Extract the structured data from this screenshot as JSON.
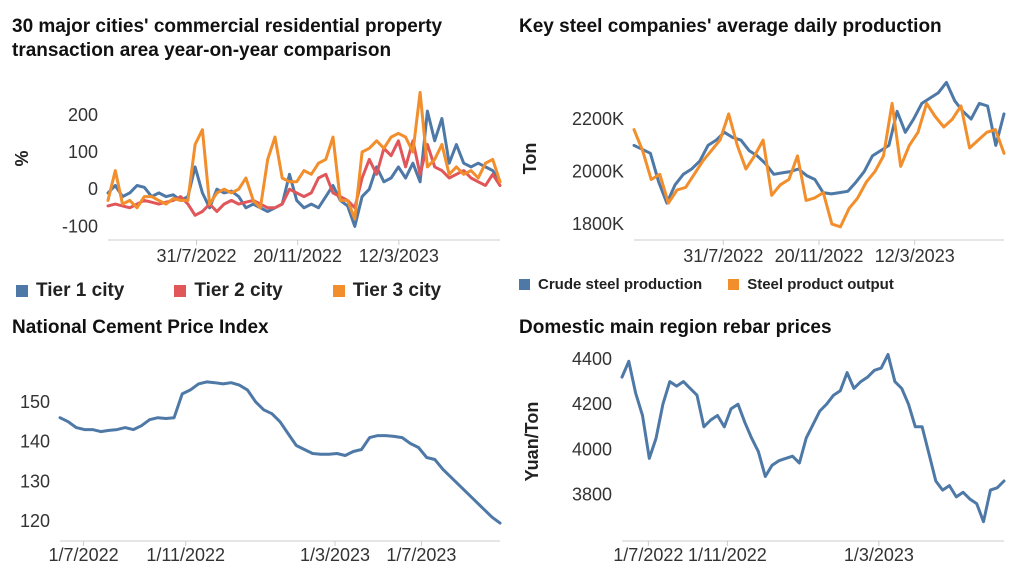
{
  "colors": {
    "blue": "#4e79a7",
    "red": "#e15759",
    "orange": "#f28e2b",
    "axis": "#cccccc"
  },
  "chart_data": [
    {
      "id": "c1",
      "type": "line",
      "title_lines": [
        "30 major cities' commercial residential property",
        "transaction area year-on-year comparison"
      ],
      "ylabel": "%",
      "xlabel": "",
      "xlim": [
        0,
        62
      ],
      "ylim": [
        -115,
        280
      ],
      "yticks": [
        -100,
        0,
        100,
        200
      ],
      "ytick_labels": [
        "-100",
        "0",
        "100",
        "200"
      ],
      "xticks": [
        14,
        30,
        46
      ],
      "xtick_labels": [
        "31/7/2022",
        "20/11/2022",
        "12/3/2023"
      ],
      "legend_position": "bottom",
      "series": [
        {
          "name": "Tier 1 city",
          "color": "#4e79a7",
          "values": [
            -10,
            10,
            -20,
            -10,
            10,
            5,
            -20,
            -10,
            -20,
            -15,
            -30,
            -20,
            60,
            -10,
            -50,
            0,
            -10,
            -5,
            -20,
            -50,
            -40,
            -50,
            -60,
            -50,
            -40,
            40,
            -30,
            -50,
            -40,
            -50,
            -20,
            10,
            -30,
            -45,
            -100,
            -20,
            0,
            60,
            20,
            30,
            60,
            30,
            70,
            20,
            210,
            130,
            190,
            70,
            120,
            70,
            60,
            70,
            60,
            50,
            20
          ]
        },
        {
          "name": "Tier 2 city",
          "color": "#e15759",
          "values": [
            -45,
            -40,
            -45,
            -50,
            -40,
            -30,
            -35,
            -40,
            -35,
            -30,
            -20,
            -40,
            -70,
            -60,
            -40,
            -60,
            -40,
            -30,
            -40,
            -35,
            -30,
            -40,
            -50,
            -50,
            -40,
            0,
            -10,
            -20,
            -10,
            30,
            40,
            -10,
            -20,
            -30,
            -50,
            30,
            80,
            40,
            110,
            90,
            130,
            60,
            130,
            40,
            120,
            60,
            50,
            30,
            40,
            50,
            30,
            20,
            10,
            40,
            10
          ]
        },
        {
          "name": "Tier 3 city",
          "color": "#f28e2b",
          "values": [
            -30,
            50,
            -40,
            -30,
            -50,
            -20,
            -20,
            -30,
            -40,
            -25,
            -30,
            -30,
            120,
            160,
            -40,
            -10,
            0,
            -10,
            0,
            30,
            -30,
            -50,
            80,
            140,
            30,
            20,
            20,
            50,
            40,
            70,
            80,
            140,
            -30,
            -30,
            -80,
            100,
            110,
            130,
            110,
            140,
            150,
            140,
            100,
            260,
            60,
            80,
            120,
            40,
            60,
            40,
            50,
            30,
            70,
            80,
            20
          ]
        }
      ]
    },
    {
      "id": "c2",
      "type": "line",
      "title_lines": [
        "Key steel companies' average daily production"
      ],
      "ylabel": "Ton",
      "xlabel": "",
      "xlim": [
        0,
        58
      ],
      "ylim": [
        1770000,
        2330000
      ],
      "yticks": [
        1800000,
        2000000,
        2200000
      ],
      "ytick_labels": [
        "1800K",
        "2000K",
        "2200K"
      ],
      "xticks": [
        14,
        29,
        44
      ],
      "xtick_labels": [
        "31/7/2022",
        "20/11/2022",
        "12/3/2023"
      ],
      "legend_position": "bottom",
      "series": [
        {
          "name": "Crude steel production",
          "color": "#4e79a7",
          "values": [
            2100000,
            2085000,
            2070000,
            1960000,
            1880000,
            1950000,
            1990000,
            2010000,
            2040000,
            2100000,
            2120000,
            2150000,
            2130000,
            2120000,
            2080000,
            2060000,
            2030000,
            1990000,
            1995000,
            2000000,
            2010000,
            1985000,
            1970000,
            1920000,
            1915000,
            1920000,
            1925000,
            1960000,
            2000000,
            2060000,
            2080000,
            2100000,
            2230000,
            2150000,
            2200000,
            2260000,
            2280000,
            2300000,
            2340000,
            2270000,
            2230000,
            2200000,
            2260000,
            2250000,
            2100000,
            2220000
          ]
        },
        {
          "name": "Steel product output",
          "color": "#f28e2b",
          "values": [
            2160000,
            2080000,
            1970000,
            1990000,
            1880000,
            1930000,
            1940000,
            1990000,
            2040000,
            2080000,
            2120000,
            2220000,
            2100000,
            2010000,
            2060000,
            2120000,
            1910000,
            1950000,
            1970000,
            2060000,
            1890000,
            1900000,
            1920000,
            1800000,
            1790000,
            1860000,
            1900000,
            1960000,
            2000000,
            2060000,
            2260000,
            2020000,
            2100000,
            2150000,
            2260000,
            2210000,
            2170000,
            2200000,
            2250000,
            2090000,
            2120000,
            2150000,
            2160000,
            2070000
          ]
        }
      ]
    },
    {
      "id": "c3",
      "type": "line",
      "title_lines": [
        "National Cement Price Index"
      ],
      "ylabel": "",
      "xlabel": "",
      "xlim": [
        0,
        56
      ],
      "ylim": [
        117,
        158
      ],
      "yticks": [
        120,
        130,
        140,
        150
      ],
      "ytick_labels": [
        "120",
        "130",
        "140",
        "150"
      ],
      "xticks": [
        3,
        16,
        35,
        46
      ],
      "xtick_labels": [
        "1/7/2022",
        "1/11/2022",
        "1/3/2023",
        "1/7/2023"
      ],
      "legend_position": "none",
      "series": [
        {
          "name": "",
          "color": "#4e79a7",
          "values": [
            146,
            145,
            143.5,
            143,
            143,
            142.5,
            142.8,
            143,
            143.5,
            143,
            144,
            145.5,
            146,
            145.8,
            146,
            152,
            153,
            154.5,
            155,
            154.8,
            154.5,
            154.8,
            154.2,
            153,
            150,
            148,
            147,
            145,
            142,
            139,
            138,
            137,
            136.8,
            136.8,
            137,
            136.5,
            137.5,
            138,
            141,
            141.5,
            141.5,
            141.3,
            141,
            139.5,
            138.5,
            136,
            135.5,
            133,
            131,
            129,
            127,
            125,
            123,
            121,
            119.5
          ]
        }
      ]
    },
    {
      "id": "c4",
      "type": "line",
      "title_lines": [
        "Domestic main region rebar prices"
      ],
      "ylabel": "Yuan/Ton",
      "xlabel": "",
      "xlim": [
        0,
        58
      ],
      "ylim": [
        3630,
        4440
      ],
      "yticks": [
        3800,
        4000,
        4200,
        4400
      ],
      "ytick_labels": [
        "3800",
        "4000",
        "4200",
        "4400"
      ],
      "xticks": [
        4,
        16,
        39
      ],
      "xtick_labels": [
        "1/7/2022",
        "1/11/2022",
        "1/3/2023"
      ],
      "legend_position": "none",
      "series": [
        {
          "name": "",
          "color": "#4e79a7",
          "values": [
            4320,
            4390,
            4250,
            4150,
            3960,
            4050,
            4200,
            4300,
            4280,
            4300,
            4270,
            4240,
            4100,
            4130,
            4150,
            4100,
            4180,
            4200,
            4120,
            4050,
            3990,
            3880,
            3930,
            3950,
            3960,
            3970,
            3940,
            4050,
            4110,
            4170,
            4200,
            4240,
            4260,
            4340,
            4270,
            4300,
            4320,
            4350,
            4360,
            4420,
            4300,
            4270,
            4200,
            4100,
            4100,
            3980,
            3860,
            3820,
            3840,
            3790,
            3810,
            3780,
            3760,
            3680,
            3820,
            3830,
            3860
          ]
        }
      ]
    }
  ]
}
